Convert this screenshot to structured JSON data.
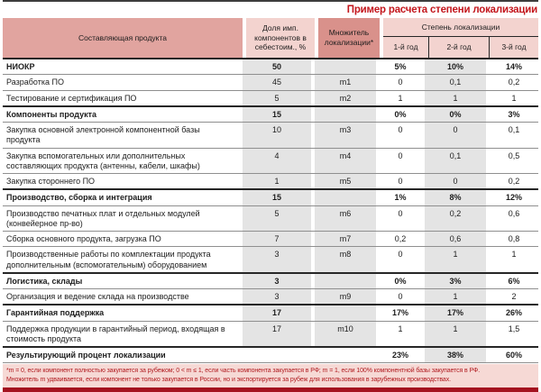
{
  "title": "Пример расчета степени локализации",
  "table": {
    "headers": {
      "col1": "Составляющая продукта",
      "col2": "Доля имп. компонентов в себестоим., %",
      "col3": "Множитель локализации*",
      "span": "Степень локализации",
      "years": [
        "1-й год",
        "2-й год",
        "3-й год"
      ]
    },
    "rows": [
      {
        "name": "НИОКР",
        "bold": true,
        "dbl": false,
        "result": false,
        "share": "50",
        "mult": "",
        "y1": "5%",
        "y2": "10%",
        "y3": "14%"
      },
      {
        "name": "Разработка ПО",
        "bold": false,
        "dbl": false,
        "result": false,
        "share": "45",
        "mult": "m1",
        "y1": "0",
        "y2": "0,1",
        "y3": "0,2"
      },
      {
        "name": "Тестирование и сертификация ПО",
        "bold": false,
        "dbl": false,
        "result": false,
        "share": "5",
        "mult": "m2",
        "y1": "1",
        "y2": "1",
        "y3": "1"
      },
      {
        "name": "Компоненты продукта",
        "bold": true,
        "dbl": false,
        "result": false,
        "share": "15",
        "mult": "",
        "y1": "0%",
        "y2": "0%",
        "y3": "3%"
      },
      {
        "name": "Закупка основной электронной компонентной базы продукта",
        "bold": false,
        "dbl": false,
        "result": false,
        "share": "10",
        "mult": "m3",
        "y1": "0",
        "y2": "0",
        "y3": "0,1"
      },
      {
        "name": "Закупка вспомогательных или дополнительных составляющих продукта (антенны, кабели, шкафы)",
        "bold": false,
        "dbl": true,
        "result": false,
        "share": "4",
        "mult": "m4",
        "y1": "0",
        "y2": "0,1",
        "y3": "0,5"
      },
      {
        "name": "Закупка стороннего ПО",
        "bold": false,
        "dbl": false,
        "result": false,
        "share": "1",
        "mult": "m5",
        "y1": "0",
        "y2": "0",
        "y3": "0,2"
      },
      {
        "name": "Производство, сборка и интеграция",
        "bold": true,
        "dbl": false,
        "result": false,
        "share": "15",
        "mult": "",
        "y1": "1%",
        "y2": "8%",
        "y3": "12%"
      },
      {
        "name": "Производство печатных плат и отдельных модулей (конвейерное пр-во)",
        "bold": false,
        "dbl": false,
        "result": false,
        "share": "5",
        "mult": "m6",
        "y1": "0",
        "y2": "0,2",
        "y3": "0,6"
      },
      {
        "name": "Сборка основного продукта, загрузка ПО",
        "bold": false,
        "dbl": false,
        "result": false,
        "share": "7",
        "mult": "m7",
        "y1": "0,2",
        "y2": "0,6",
        "y3": "0,8"
      },
      {
        "name": "Производственные работы по комплектации продукта дополнительным (вспомогательным) оборудованием",
        "bold": false,
        "dbl": true,
        "result": false,
        "share": "3",
        "mult": "m8",
        "y1": "0",
        "y2": "1",
        "y3": "1"
      },
      {
        "name": "Логистика, склады",
        "bold": true,
        "dbl": false,
        "result": false,
        "share": "3",
        "mult": "",
        "y1": "0%",
        "y2": "3%",
        "y3": "6%"
      },
      {
        "name": "Организация и ведение склада на производстве",
        "bold": false,
        "dbl": false,
        "result": false,
        "share": "3",
        "mult": "m9",
        "y1": "0",
        "y2": "1",
        "y3": "2"
      },
      {
        "name": "Гарантийная поддержка",
        "bold": true,
        "dbl": false,
        "result": false,
        "share": "17",
        "mult": "",
        "y1": "17%",
        "y2": "17%",
        "y3": "26%"
      },
      {
        "name": "Поддержка продукции в гарантийный период, входящая в стоимость продукта",
        "bold": false,
        "dbl": true,
        "result": false,
        "share": "17",
        "mult": "m10",
        "y1": "1",
        "y2": "1",
        "y3": "1,5"
      },
      {
        "name": "Результирующий процент локализации",
        "bold": true,
        "dbl": false,
        "result": true,
        "share": "",
        "mult": "",
        "y1": "23%",
        "y2": "38%",
        "y3": "60%"
      }
    ]
  },
  "footnote": {
    "line1": "*m = 0, если компонент полностью закупается за рубежом; 0 < m ≤ 1, если часть компонента закупается в РФ; m = 1, если 100% компонентной базы закупается в РФ.",
    "line2": "Множитель m удваивается, если компонент не только закупается в России, но и экспортируется за рубеж для использования в зарубежных производствах."
  },
  "colors": {
    "title_red": "#c3161c",
    "header_medium_pink": "#e1a49f",
    "header_light_pink": "#f3d3cf",
    "header_dark_pink": "#d9918b",
    "stripe_gray": "#e4e4e4",
    "footnote_bg": "#f6d9d5",
    "footnote_text": "#b01a1f",
    "bottom_bar": "#a4111f"
  }
}
